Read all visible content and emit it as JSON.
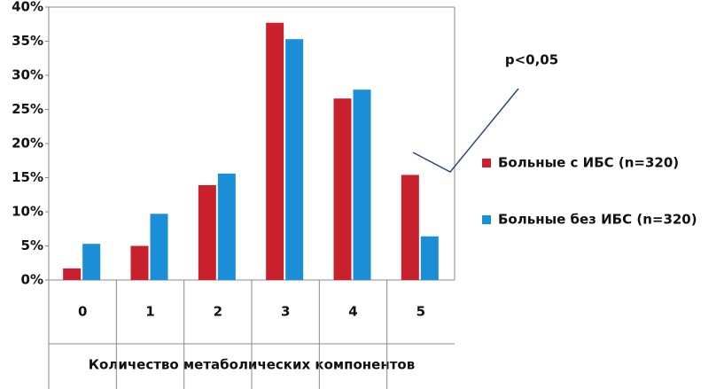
{
  "chart_data": {
    "type": "bar",
    "categories": [
      "0",
      "1",
      "2",
      "3",
      "4",
      "5"
    ],
    "series": [
      {
        "name": "Больные с ИБС (n=320)",
        "color": "#c8202c",
        "values": [
          1.7,
          5.0,
          13.9,
          37.7,
          26.6,
          15.4
        ]
      },
      {
        "name": "Больные без ИБС (n=320)",
        "color": "#1a8fd8",
        "values": [
          5.3,
          9.7,
          15.6,
          35.3,
          27.9,
          6.4
        ]
      }
    ],
    "ylim": [
      0,
      40
    ],
    "yticks": [
      {
        "value": 0,
        "label": "0%"
      },
      {
        "value": 5,
        "label": "5%"
      },
      {
        "value": 10,
        "label": "10%"
      },
      {
        "value": 15,
        "label": "15%"
      },
      {
        "value": 20,
        "label": "20%"
      },
      {
        "value": 25,
        "label": "25%"
      },
      {
        "value": 30,
        "label": "30%"
      },
      {
        "value": 35,
        "label": "35%"
      },
      {
        "value": 40,
        "label": "40%"
      }
    ],
    "xlabel": "Количество метаболических компонентов",
    "annotation": "p<0,05",
    "grid": false,
    "legend": "right"
  }
}
